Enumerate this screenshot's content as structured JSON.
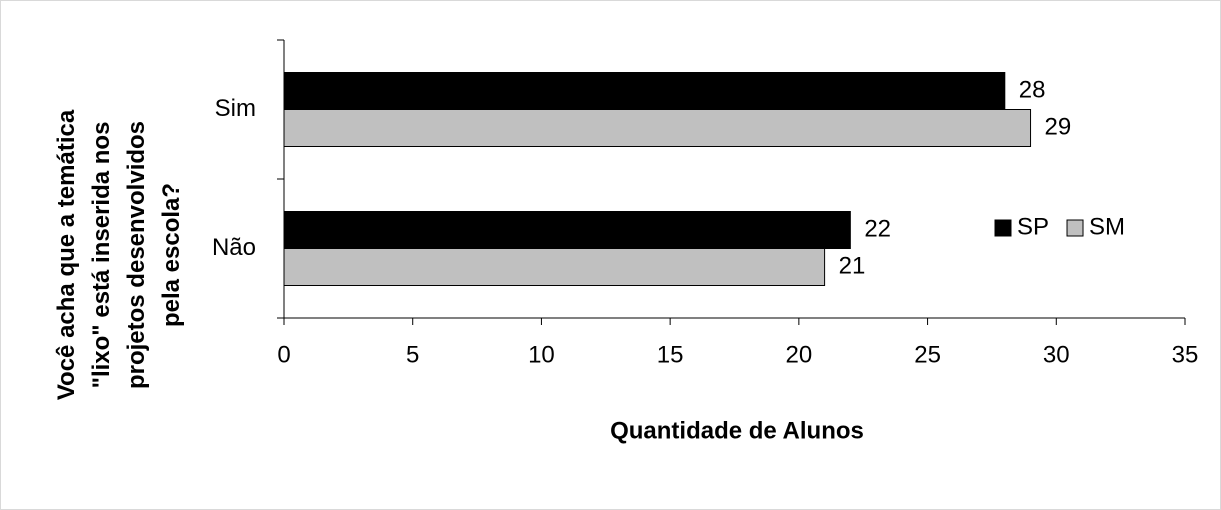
{
  "chart_data": {
    "type": "barh",
    "xlabel": "Quantidade de Alunos",
    "ylabel": [
      "Você acha que a temática",
      "\"lixo\" está inserida nos",
      "projetos desenvolvidos",
      "pela escola?"
    ],
    "categories": [
      "Sim",
      "Não"
    ],
    "series": [
      {
        "name": "SP",
        "color": "#000000",
        "values": [
          28,
          22
        ]
      },
      {
        "name": "SM",
        "color": "#c0c0c0",
        "values": [
          29,
          21
        ]
      }
    ],
    "xlim": [
      0,
      35
    ],
    "xticks": [
      0,
      5,
      10,
      15,
      20,
      25,
      30,
      35
    ],
    "legend": "right",
    "grid": false
  }
}
